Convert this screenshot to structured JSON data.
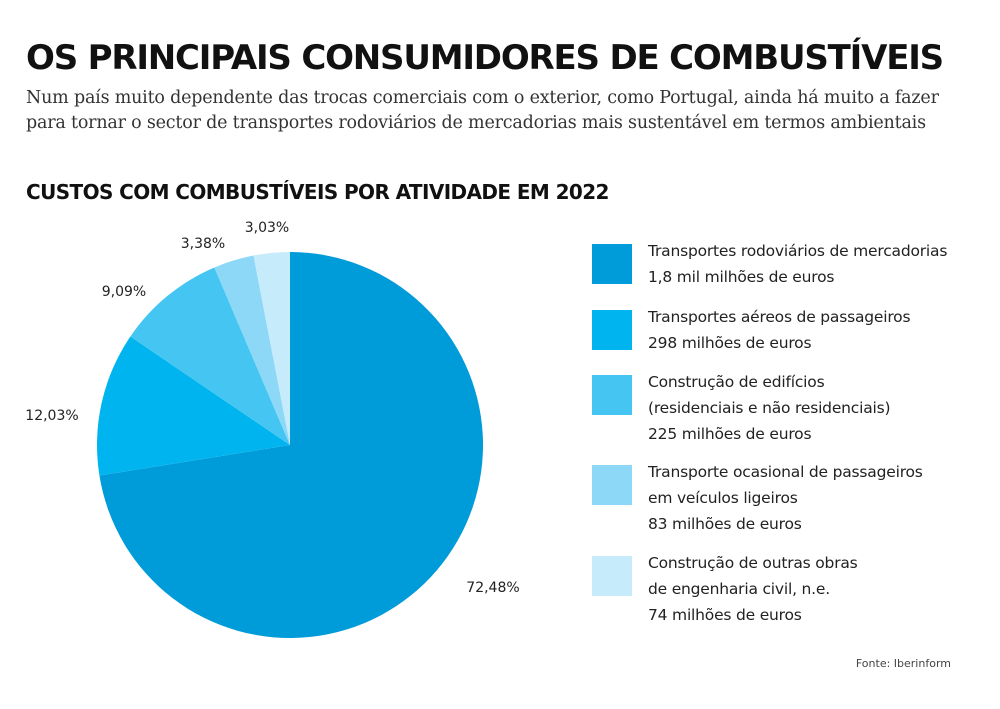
{
  "header": {
    "title": "OS PRINCIPAIS CONSUMIDORES DE COMBUSTÍVEIS",
    "subtitle_line1": "Num país muito dependente das trocas comerciais com o exterior, como Portugal, ainda há muito a fazer",
    "subtitle_line2": "para tornar o sector de transportes rodoviários de mercadorias mais sustentável em termos ambientais"
  },
  "chart_data": {
    "type": "pie",
    "title": "CUSTOS COM COMBUSTÍVEIS POR ATIVIDADE EM 2022",
    "slices": [
      {
        "label_lines": [
          "Transportes rodoviários de mercadorias"
        ],
        "amount": "1,8 mil milhões de euros",
        "value": 72.48,
        "pct_label": "72,48%",
        "color": "#009bd9"
      },
      {
        "label_lines": [
          "Transportes aéreos de passageiros"
        ],
        "amount": "298 milhões de euros",
        "value": 12.03,
        "pct_label": "12,03%",
        "color": "#00b5ef"
      },
      {
        "label_lines": [
          "Construção de edifícios",
          "(residenciais e não residenciais)"
        ],
        "amount": "225 milhões de euros",
        "value": 9.09,
        "pct_label": "9,09%",
        "color": "#45c6f2"
      },
      {
        "label_lines": [
          "Transporte ocasional de passageiros",
          "em veículos ligeiros"
        ],
        "amount": "83 milhões de euros",
        "value": 3.38,
        "pct_label": "3,38%",
        "color": "#8dd8f6"
      },
      {
        "label_lines": [
          "Construção de outras obras",
          "de engenharia civil, n.e."
        ],
        "amount": "74 milhões de euros",
        "value": 3.03,
        "pct_label": "3,03%",
        "color": "#c6ebfb"
      }
    ],
    "legend_position": "right"
  },
  "footer": {
    "source": "Fonte: Iberinform"
  }
}
